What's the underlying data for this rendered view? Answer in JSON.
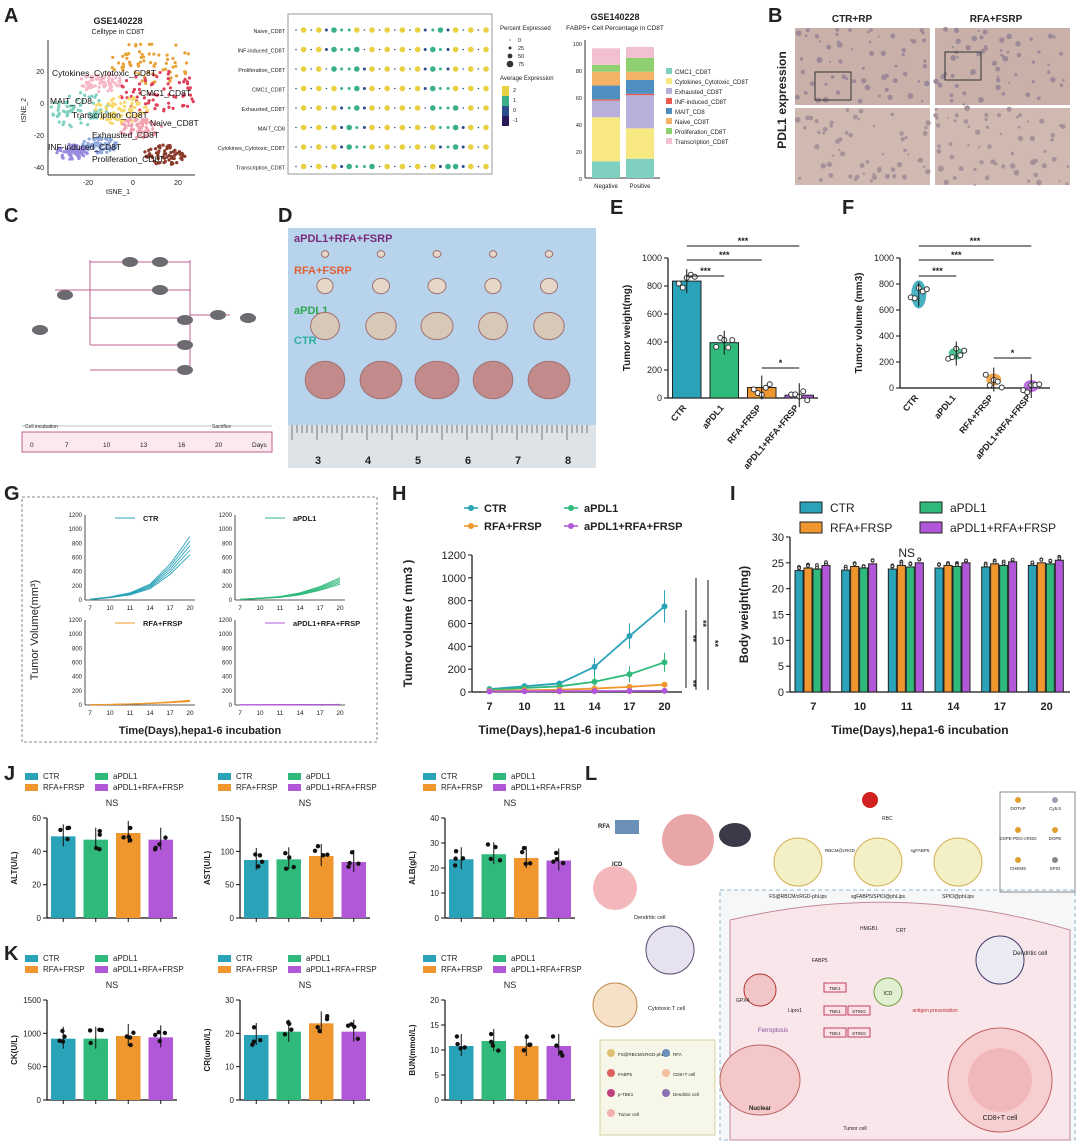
{
  "panel_letters": {
    "A": "A",
    "B": "B",
    "C": "C",
    "D": "D",
    "E": "E",
    "F": "F",
    "G": "G",
    "H": "H",
    "I": "I",
    "J": "J",
    "K": "K",
    "L": "L"
  },
  "colors": {
    "CTR": "#2aa3b8",
    "aPDL1": "#2fba7c",
    "RFA_FRSP": "#f0962e",
    "combo": "#b158d8"
  },
  "panel_A": {
    "tsne": {
      "title": "GSE140228",
      "subtitle": "Celltype in CD8T",
      "xlabel": "tSNE_1",
      "ylabel": "tSNE_2",
      "xticks": [
        "-20",
        "0",
        "20"
      ],
      "yticks": [
        "20",
        "0",
        "-20",
        "-40"
      ],
      "clusters": [
        "Cytokines_Cytotoxic_CD8T",
        "CMC1_CD8T",
        "MAIT_CD8",
        "Transcription_CD8T",
        "Naive_CD8T",
        "Exhausted_CD8T",
        "INF-induced_CD8T",
        "Proliferation_CD8T"
      ]
    },
    "dot": {
      "rows": [
        "Naive_CD8T",
        "INF-induced_CD8T",
        "Proliferation_CD8T",
        "CMC1_CD8T",
        "Exhausted_CD8T",
        "MAIT_CD8",
        "Cytokines_Cytotoxic_CD8T",
        "Transcription_CD8T"
      ],
      "legend_pct_title": "Percent Expressed",
      "pct_levels": [
        "0",
        "25",
        "50",
        "75"
      ],
      "legend_avg_title": "Average Expression",
      "avg_levels": [
        "2",
        "1",
        "0",
        "-1"
      ]
    },
    "stack": {
      "title": "GSE140228",
      "subtitle": "FABP5+ Cell Percentage in CD8T",
      "yticks": [
        "100",
        "80",
        "60",
        "40",
        "20",
        "0"
      ],
      "categories": [
        "Negative",
        "Positive"
      ],
      "legend": [
        "CMC1_CD8T",
        "Cytokines_Cytotoxic_CD8T",
        "Exhausted_CD8T",
        "INF-induced_CD8T",
        "MAIT_CD8",
        "Naive_CD8T",
        "Proliferation_CD8T",
        "Transcription_CD8T"
      ]
    }
  },
  "panel_B": {
    "col1": "CTR+RP",
    "col2": "RFA+FSRP",
    "ylabel": "PDL1 expression"
  },
  "panel_C": {
    "days": [
      "0",
      "7",
      "10",
      "13",
      "16",
      "20"
    ],
    "days_label": "Days",
    "t1": "Cell incubation",
    "t2": "Sacrifice"
  },
  "panel_D": {
    "rows": [
      "aPDL1+RFA+FSRP",
      "RFA+FSRP",
      "aPDL1",
      "CTR"
    ],
    "ruler": [
      "3",
      "4",
      "5",
      "6",
      "7",
      "8"
    ]
  },
  "chart_data": [
    {
      "type": "bar",
      "id": "E",
      "categories": [
        "CTR",
        "aPDL1",
        "RFA+FRSP",
        "aPDL1+RFA+FRSP"
      ],
      "values": [
        835,
        395,
        75,
        20
      ],
      "ylabel": "Tumor weight(mg)",
      "ylim": [
        0,
        1000
      ],
      "yticks": [
        "0",
        "200",
        "400",
        "600",
        "800",
        "1000"
      ],
      "sig": [
        "***",
        "***",
        "***",
        "*"
      ]
    },
    {
      "type": "scatter",
      "id": "F",
      "categories": [
        "CTR",
        "aPDL1",
        "RFA+FRSP",
        "aPDL1+RFA+FRSP"
      ],
      "values": [
        720,
        265,
        65,
        15
      ],
      "ylabel": "Tumor volume (mm3)",
      "ylim": [
        0,
        1000
      ],
      "yticks": [
        "0",
        "200",
        "400",
        "600",
        "800",
        "1000"
      ],
      "sig": [
        "***",
        "***",
        "***",
        "*"
      ]
    },
    {
      "type": "line",
      "id": "G",
      "ylabel": "Tumor Volume(mm³)",
      "xlabel": "Time(Days),hepa1-6 incubation",
      "x": [
        "7",
        "10",
        "11",
        "14",
        "17",
        "20"
      ],
      "yticks": [
        "0",
        "200",
        "400",
        "600",
        "800",
        "1000",
        "1200"
      ],
      "series": [
        {
          "name": "CTR",
          "values": [
            10,
            40,
            90,
            200,
            450,
            800
          ]
        },
        {
          "name": "aPDL1",
          "values": [
            10,
            25,
            45,
            90,
            170,
            280
          ]
        },
        {
          "name": "RFA+FRSP",
          "values": [
            5,
            8,
            15,
            25,
            40,
            60
          ]
        },
        {
          "name": "aPDL1+RFA+FRSP",
          "values": [
            2,
            3,
            4,
            5,
            6,
            8
          ]
        }
      ]
    },
    {
      "type": "line",
      "id": "H",
      "ylabel": "Tumor volume ( mm3 )",
      "xlabel": "Time(Days),hepa1-6 incubation",
      "x": [
        "7",
        "10",
        "11",
        "14",
        "17",
        "20"
      ],
      "ylim": [
        0,
        1200
      ],
      "yticks": [
        "0",
        "200",
        "400",
        "600",
        "800",
        "1000",
        "1200"
      ],
      "series": [
        {
          "name": "CTR",
          "values": [
            25,
            50,
            75,
            220,
            490,
            750
          ]
        },
        {
          "name": "aPDL1",
          "values": [
            20,
            35,
            50,
            90,
            155,
            260
          ]
        },
        {
          "name": "RFA+FRSP",
          "values": [
            10,
            15,
            20,
            30,
            45,
            65
          ]
        },
        {
          "name": "aPDL1+RFA+FRSP",
          "values": [
            5,
            6,
            7,
            8,
            9,
            10
          ]
        }
      ],
      "sig": [
        "**",
        "**",
        "**",
        "**"
      ]
    },
    {
      "type": "bar",
      "id": "I",
      "ylabel": "Body weight(mg)",
      "xlabel": "Time(Days),hepa1-6 incubation",
      "categories": [
        "7",
        "10",
        "11",
        "14",
        "17",
        "20"
      ],
      "ylim": [
        0,
        30
      ],
      "yticks": [
        "0",
        "5",
        "10",
        "15",
        "20",
        "25",
        "30"
      ],
      "annotation": "NS",
      "series": [
        {
          "name": "CTR",
          "values": [
            23.5,
            23.6,
            23.8,
            24,
            24.2,
            24.5
          ]
        },
        {
          "name": "RFA+FRSP",
          "values": [
            24,
            24.3,
            24.5,
            24.5,
            24.8,
            25
          ]
        },
        {
          "name": "aPDL1",
          "values": [
            23.8,
            24,
            24.2,
            24.3,
            24.5,
            24.8
          ]
        },
        {
          "name": "aPDL1+RFA+FRSP",
          "values": [
            24.5,
            24.8,
            25,
            25,
            25.2,
            25.5
          ]
        }
      ]
    },
    {
      "type": "bar",
      "id": "J1",
      "ylabel": "ALT(U/L)",
      "yticks": [
        "0",
        "20",
        "40",
        "60"
      ],
      "ylim": [
        0,
        60
      ],
      "values": [
        49,
        47,
        51,
        47
      ],
      "sig": "NS"
    },
    {
      "type": "bar",
      "id": "J2",
      "ylabel": "AST(U/L)",
      "yticks": [
        "0",
        "50",
        "100",
        "150"
      ],
      "ylim": [
        0,
        150
      ],
      "values": [
        87,
        88,
        93,
        84
      ],
      "sig": "NS"
    },
    {
      "type": "bar",
      "id": "J3",
      "ylabel": "ALB(g/L)",
      "yticks": [
        "0",
        "10",
        "20",
        "30",
        "40"
      ],
      "ylim": [
        0,
        40
      ],
      "values": [
        23.5,
        25.5,
        24,
        23
      ],
      "sig": "NS"
    },
    {
      "type": "bar",
      "id": "K1",
      "ylabel": "CK(U/L)",
      "yticks": [
        "0",
        "500",
        "1000",
        "1500"
      ],
      "ylim": [
        0,
        1500
      ],
      "values": [
        920,
        920,
        960,
        940
      ],
      "sig": "NS"
    },
    {
      "type": "bar",
      "id": "K2",
      "ylabel": "CR(umol/L)",
      "yticks": [
        "0",
        "10",
        "20",
        "30"
      ],
      "ylim": [
        0,
        30
      ],
      "values": [
        19.5,
        20.5,
        23,
        20.5
      ],
      "sig": "NS"
    },
    {
      "type": "bar",
      "id": "K3",
      "ylabel": "BUN(mmol/L)",
      "yticks": [
        "0",
        "5",
        "10",
        "15",
        "20"
      ],
      "ylim": [
        0,
        20
      ],
      "values": [
        10.8,
        11.8,
        10.8,
        10.8
      ],
      "sig": "NS"
    }
  ],
  "legend4": {
    "CTR": "CTR",
    "aPDL1": "aPDL1",
    "RFA": "RFA+FRSP",
    "combo": "aPDL1+RFA+FRSP"
  },
  "legend4_H": {
    "CTR": "CTR",
    "aPDL1": "aPDL1",
    "RFA": "RFA+FRSP",
    "combo": "aPDL1+RFA+FRSP"
  },
  "legend4_I": {
    "CTR": "CTR",
    "aPDL1": "aPDL1",
    "RFA": "RFA+FRSP",
    "combo": "aPDL1+RFA+FRSP"
  },
  "legend_small": {
    "CTR": "CTR",
    "aPDL1": "aPDL1",
    "RFA": "RFA+FRSP",
    "combo": "aPDL1+RFA+FRSP"
  },
  "G_titles": [
    "CTR",
    "aPDL1",
    "RFA+FRSP",
    "aPDL1+RFA+FRSP"
  ],
  "panel_L": {
    "rfa": "RFA",
    "icd": "ICD",
    "dc": "Dendritic cell",
    "ctl": "Cytotoxic T cell",
    "np1": "FS@RBCM/cRGD-phLips",
    "np2": "sgFABP5/SPIO@phLips",
    "np3": "SPIO@phLips",
    "rbcm": "RBCM@cRGD",
    "sg": "sgFABP5",
    "rbc": "RBC",
    "m1": "DOTAP",
    "m2": "Cy5.5",
    "m3": "DSPE-PEG-cRGD",
    "m4": "DOPE",
    "m5": "CHEMS",
    "m6": "SPIO",
    "fabp5": "FABP5",
    "hmgb1": "HMGB1",
    "crt": "CRT",
    "gpx4": "GPX4",
    "lipro1": "Lipro1",
    "ferroptosis": "Ferroptosis",
    "tbk1": "TBK1",
    "sting": "STING",
    "icd2": "ICD",
    "antigen": "antigen presentation",
    "nuclear": "Nuclear",
    "tumor": "Tumor cell",
    "cd8": "CD8+T cell",
    "dc2": "Dendritic cell",
    "leg": [
      "FS@RBCM/cRGD-phLips",
      "RFA",
      "FABP5",
      "CD8+T cell",
      "p-TBK1",
      "Dendritic cell",
      "Tumor cell"
    ]
  }
}
